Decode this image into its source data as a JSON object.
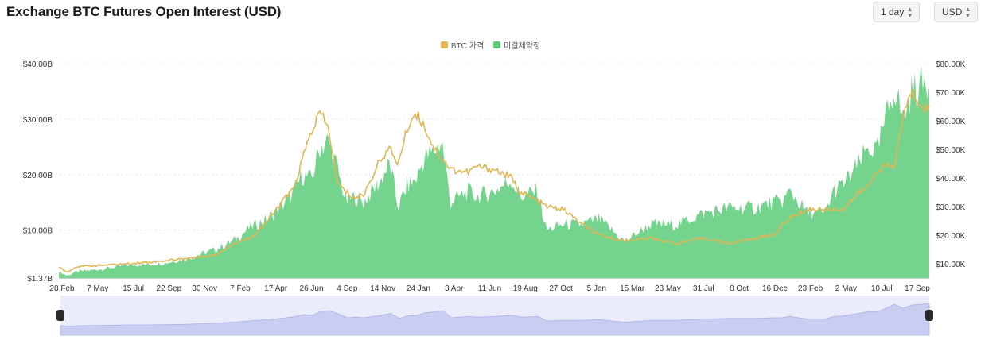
{
  "header": {
    "title": "Exchange BTC Futures Open Interest (USD)"
  },
  "controls": {
    "interval": "1 day",
    "currency": "USD"
  },
  "colors": {
    "price": "#E2B553",
    "oi": "#5CCB78",
    "navigator": "#DDE0F8"
  },
  "chart_data": {
    "type": "area",
    "legend": [
      {
        "name": "BTC 가격",
        "color": "#E2B553"
      },
      {
        "name": "미결제약정",
        "color": "#5CCB78"
      }
    ],
    "legend_position": "top",
    "x_ticks": [
      "28 Feb",
      "7 May",
      "15 Jul",
      "22 Sep",
      "30 Nov",
      "7 Feb",
      "17 Apr",
      "26 Jun",
      "4 Sep",
      "14 Nov",
      "24 Jan",
      "3 Apr",
      "11 Jun",
      "19 Aug",
      "27 Oct",
      "5 Jan",
      "15 Mar",
      "23 May",
      "31 Jul",
      "8 Oct",
      "16 Dec",
      "23 Feb",
      "2 May",
      "10 Jul",
      "17 Sep"
    ],
    "y_left": {
      "ticks": [
        "$1.37B",
        "$10.00B",
        "$20.00B",
        "$30.00B",
        "$40.00B"
      ],
      "values": [
        1.37,
        10,
        20,
        30,
        40
      ],
      "unit": "B USD"
    },
    "y_right": {
      "ticks": [
        "$10.00K",
        "$20.00K",
        "$30.00K",
        "$40.00K",
        "$50.00K",
        "$60.00K",
        "$70.00K",
        "$80.00K"
      ],
      "values": [
        10,
        20,
        30,
        40,
        50,
        60,
        70,
        80
      ],
      "unit": "K USD"
    },
    "grid": true,
    "series": [
      {
        "name": "미결제약정",
        "axis": "left",
        "x": [
          0,
          0.01,
          0.02,
          0.05,
          0.08,
          0.1,
          0.12,
          0.15,
          0.18,
          0.2,
          0.22,
          0.24,
          0.26,
          0.27,
          0.28,
          0.29,
          0.3,
          0.31,
          0.32,
          0.33,
          0.34,
          0.35,
          0.37,
          0.38,
          0.39,
          0.4,
          0.41,
          0.42,
          0.43,
          0.44,
          0.45,
          0.47,
          0.48,
          0.5,
          0.52,
          0.53,
          0.55,
          0.56,
          0.58,
          0.6,
          0.62,
          0.65,
          0.68,
          0.71,
          0.74,
          0.77,
          0.8,
          0.82,
          0.83,
          0.84,
          0.86,
          0.88,
          0.89,
          0.9,
          0.92,
          0.93,
          0.94,
          0.95,
          0.96,
          0.97,
          0.98,
          0.99,
          1
        ],
        "y": [
          2.5,
          1.8,
          2.5,
          3,
          3.7,
          3.8,
          4,
          5,
          6.5,
          8,
          10.5,
          12,
          15,
          17,
          20,
          19,
          25,
          26,
          21,
          15,
          16,
          15,
          19,
          22,
          14,
          18,
          19,
          23,
          24,
          26,
          15,
          17,
          16,
          17,
          19,
          16,
          17,
          10,
          11,
          11,
          12,
          8,
          11,
          11,
          13,
          14,
          14,
          15,
          15,
          17,
          13,
          13,
          17,
          18,
          22,
          25,
          24,
          30,
          36,
          30,
          35,
          36,
          37
        ],
        "notes": "x is the fraction of the time span (28 Feb 2020 – Oct 2024) shown on the date axis"
      },
      {
        "name": "BTC 가격",
        "axis": "right",
        "x": [
          0,
          0.01,
          0.02,
          0.05,
          0.08,
          0.1,
          0.12,
          0.15,
          0.18,
          0.2,
          0.22,
          0.24,
          0.26,
          0.27,
          0.28,
          0.29,
          0.3,
          0.31,
          0.32,
          0.33,
          0.34,
          0.35,
          0.37,
          0.38,
          0.39,
          0.4,
          0.41,
          0.42,
          0.43,
          0.44,
          0.45,
          0.47,
          0.48,
          0.5,
          0.52,
          0.53,
          0.55,
          0.56,
          0.58,
          0.6,
          0.62,
          0.65,
          0.68,
          0.71,
          0.74,
          0.77,
          0.8,
          0.82,
          0.83,
          0.84,
          0.86,
          0.88,
          0.89,
          0.9,
          0.92,
          0.93,
          0.94,
          0.95,
          0.96,
          0.97,
          0.98,
          0.99,
          1
        ],
        "y": [
          9,
          7,
          9,
          9.5,
          10,
          10.5,
          11,
          12,
          13,
          17,
          19,
          25,
          33,
          36,
          47,
          56,
          63,
          57,
          38,
          35,
          33,
          34,
          47,
          50,
          45,
          57,
          63,
          58,
          51,
          47,
          43,
          42,
          44,
          43,
          40,
          35,
          32,
          30,
          29,
          24,
          20,
          18,
          19,
          17,
          19,
          17,
          19,
          20,
          23,
          26,
          29,
          29,
          29,
          29,
          35,
          37,
          43,
          44,
          44,
          62,
          70,
          66,
          64
        ]
      }
    ]
  }
}
